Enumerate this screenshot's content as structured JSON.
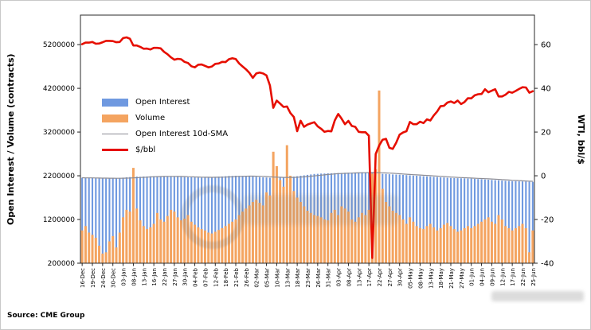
{
  "chart_data": {
    "type": "bar",
    "subtype": "combo-dual-axis-bars-and-lines",
    "grid": false,
    "legend_position": "upper-left-inside",
    "source": "Source: CME Group",
    "tick_every": 3,
    "x_tick_labels": [
      "16-Dec",
      "19-Dec",
      "24-Dec",
      "30-Dec",
      "03-Jan",
      "08-Jan",
      "13-Jan",
      "16-Jan",
      "22-Jan",
      "27-Jan",
      "30-Jan",
      "04-Feb",
      "07-Feb",
      "12-Feb",
      "18-Feb",
      "21-Feb",
      "26-Feb",
      "02-Mar",
      "05-Mar",
      "10-Mar",
      "13-Mar",
      "18-Mar",
      "23-Mar",
      "26-Mar",
      "31-Mar",
      "03-Apr",
      "08-Apr",
      "13-Apr",
      "17-Apr",
      "22-Apr",
      "27-Apr",
      "30-Apr",
      "05-May",
      "08-May",
      "13-May",
      "18-May",
      "21-May",
      "27-May",
      "01-Jun",
      "04-Jun",
      "09-Jun",
      "12-Jun",
      "17-Jun",
      "22-Jun",
      "25-Jun"
    ],
    "left_axis": {
      "label": "Open Interest / Volume (contracts)",
      "range": [
        200000,
        5875000
      ],
      "ticks": [
        5200000,
        4200000,
        3200000,
        2200000,
        1200000,
        200000
      ]
    },
    "right_axis": {
      "label": "WTI, bbl/$",
      "range": [
        -40,
        73.5
      ],
      "ticks": [
        60,
        40,
        20,
        0,
        -20,
        -40
      ]
    },
    "series": [
      {
        "name": "Open Interest",
        "type": "bar",
        "axis": "left",
        "color": "#6f99e0",
        "values": [
          2155000,
          2150000,
          2148000,
          2152000,
          2145000,
          2140000,
          2138000,
          2135000,
          2140000,
          2142000,
          2145000,
          2150000,
          2158000,
          2165000,
          2170000,
          2175000,
          2180000,
          2178000,
          2182000,
          2185000,
          2188000,
          2190000,
          2192000,
          2190000,
          2188000,
          2185000,
          2180000,
          2178000,
          2175000,
          2172000,
          2170000,
          2168000,
          2165000,
          2162000,
          2160000,
          2158000,
          2162000,
          2165000,
          2170000,
          2175000,
          2180000,
          2185000,
          2190000,
          2195000,
          2198000,
          2200000,
          2198000,
          2195000,
          2190000,
          2185000,
          2180000,
          2175000,
          2170000,
          2165000,
          2160000,
          2155000,
          2150000,
          2155000,
          2160000,
          2165000,
          2170000,
          2175000,
          2180000,
          2190000,
          2200000,
          2210000,
          2220000,
          2230000,
          2240000,
          2245000,
          2250000,
          2252000,
          2255000,
          2258000,
          2260000,
          2262000,
          2265000,
          2268000,
          2270000,
          2272000,
          2275000,
          2278000,
          2280000,
          2278000,
          2275000,
          2270000,
          2260000,
          2250000,
          2245000,
          2240000,
          2235000,
          2230000,
          2228000,
          2225000,
          2220000,
          2215000,
          2210000,
          2205000,
          2200000,
          2195000,
          2190000,
          2185000,
          2180000,
          2175000,
          2170000,
          2165000,
          2160000,
          2155000,
          2150000,
          2148000,
          2145000,
          2142000,
          2140000,
          2138000,
          2135000,
          2130000,
          2125000,
          2120000,
          2115000,
          2110000,
          2105000,
          2100000,
          2095000,
          2090000,
          2085000,
          2080000,
          2078000,
          2075000,
          2072000,
          2070000,
          2068000,
          2065000,
          2060000
        ]
      },
      {
        "name": "Volume",
        "type": "bar",
        "axis": "left",
        "color": "#f4a460",
        "values": [
          950000,
          1050000,
          900000,
          850000,
          780000,
          600000,
          420000,
          450000,
          700000,
          820000,
          560000,
          900000,
          1250000,
          1420000,
          1380000,
          2380000,
          1450000,
          1180000,
          1050000,
          980000,
          1020000,
          1100000,
          1350000,
          1200000,
          1150000,
          1280000,
          1420000,
          1380000,
          1250000,
          1180000,
          1220000,
          1300000,
          1150000,
          1080000,
          1020000,
          980000,
          950000,
          900000,
          880000,
          920000,
          960000,
          1000000,
          1050000,
          1100000,
          1150000,
          1200000,
          1300000,
          1380000,
          1450000,
          1520000,
          1600000,
          1650000,
          1580000,
          1520000,
          1820000,
          1750000,
          2750000,
          2420000,
          2100000,
          1950000,
          2900000,
          2200000,
          1850000,
          1700000,
          1600000,
          1500000,
          1400000,
          1350000,
          1300000,
          1280000,
          1250000,
          1200000,
          1180000,
          1350000,
          1420000,
          1300000,
          1500000,
          1450000,
          1380000,
          1200000,
          1150000,
          1250000,
          1350000,
          1300000,
          1420000,
          2250000,
          2350000,
          4150000,
          1900000,
          1600000,
          1500000,
          1400000,
          1350000,
          1300000,
          1200000,
          1100000,
          1250000,
          1150000,
          1050000,
          1000000,
          980000,
          1050000,
          1100000,
          1020000,
          950000,
          1000000,
          1080000,
          1120000,
          1050000,
          980000,
          920000,
          950000,
          1000000,
          1050000,
          1000000,
          1050000,
          1100000,
          1150000,
          1200000,
          1250000,
          1150000,
          1100000,
          1300000,
          1200000,
          1050000,
          1000000,
          950000,
          1000000,
          1050000,
          1100000,
          1000000,
          450000,
          950000
        ]
      },
      {
        "name": "Open Interest 10d-SMA",
        "type": "line",
        "axis": "left",
        "color": "#8c8c94",
        "line_width": 1.2,
        "derived": "10-point trailing moving average of Open Interest"
      },
      {
        "name": "$/bbl",
        "type": "line",
        "axis": "right",
        "color": "#e60e00",
        "line_width": 2.6,
        "values": [
          60.2,
          60.9,
          60.9,
          61.2,
          60.4,
          60.5,
          61.1,
          61.7,
          61.7,
          61.6,
          61.1,
          61.2,
          63.0,
          63.3,
          62.7,
          59.6,
          59.6,
          59.0,
          58.1,
          58.2,
          57.8,
          58.5,
          58.5,
          58.3,
          56.7,
          55.6,
          54.2,
          53.1,
          53.5,
          53.3,
          52.1,
          51.6,
          50.1,
          49.6,
          50.8,
          50.9,
          50.3,
          49.6,
          50.0,
          51.2,
          51.4,
          52.1,
          52.0,
          53.3,
          53.8,
          53.4,
          51.4,
          50.0,
          48.7,
          47.1,
          44.8,
          46.8,
          47.2,
          46.8,
          45.9,
          41.3,
          31.1,
          34.4,
          33.0,
          31.5,
          31.7,
          28.7,
          26.9,
          20.4,
          25.2,
          22.4,
          23.4,
          24.0,
          24.5,
          22.6,
          21.5,
          20.1,
          20.5,
          20.3,
          25.3,
          28.3,
          26.1,
          23.6,
          25.1,
          22.8,
          22.4,
          20.1,
          19.9,
          19.9,
          18.3,
          -37.6,
          10.0,
          13.8,
          16.5,
          16.9,
          12.8,
          12.3,
          15.1,
          18.8,
          19.8,
          20.4,
          24.6,
          23.6,
          23.6,
          24.7,
          24.1,
          25.8,
          25.3,
          27.6,
          29.4,
          31.8,
          32.0,
          33.5,
          34.0,
          33.3,
          34.4,
          32.8,
          33.7,
          35.5,
          35.4,
          36.8,
          37.3,
          37.4,
          39.6,
          38.2,
          38.9,
          39.6,
          36.3,
          36.3,
          37.1,
          38.4,
          38.0,
          38.8,
          39.7,
          40.5,
          40.4,
          38.0,
          38.7
        ]
      }
    ]
  }
}
